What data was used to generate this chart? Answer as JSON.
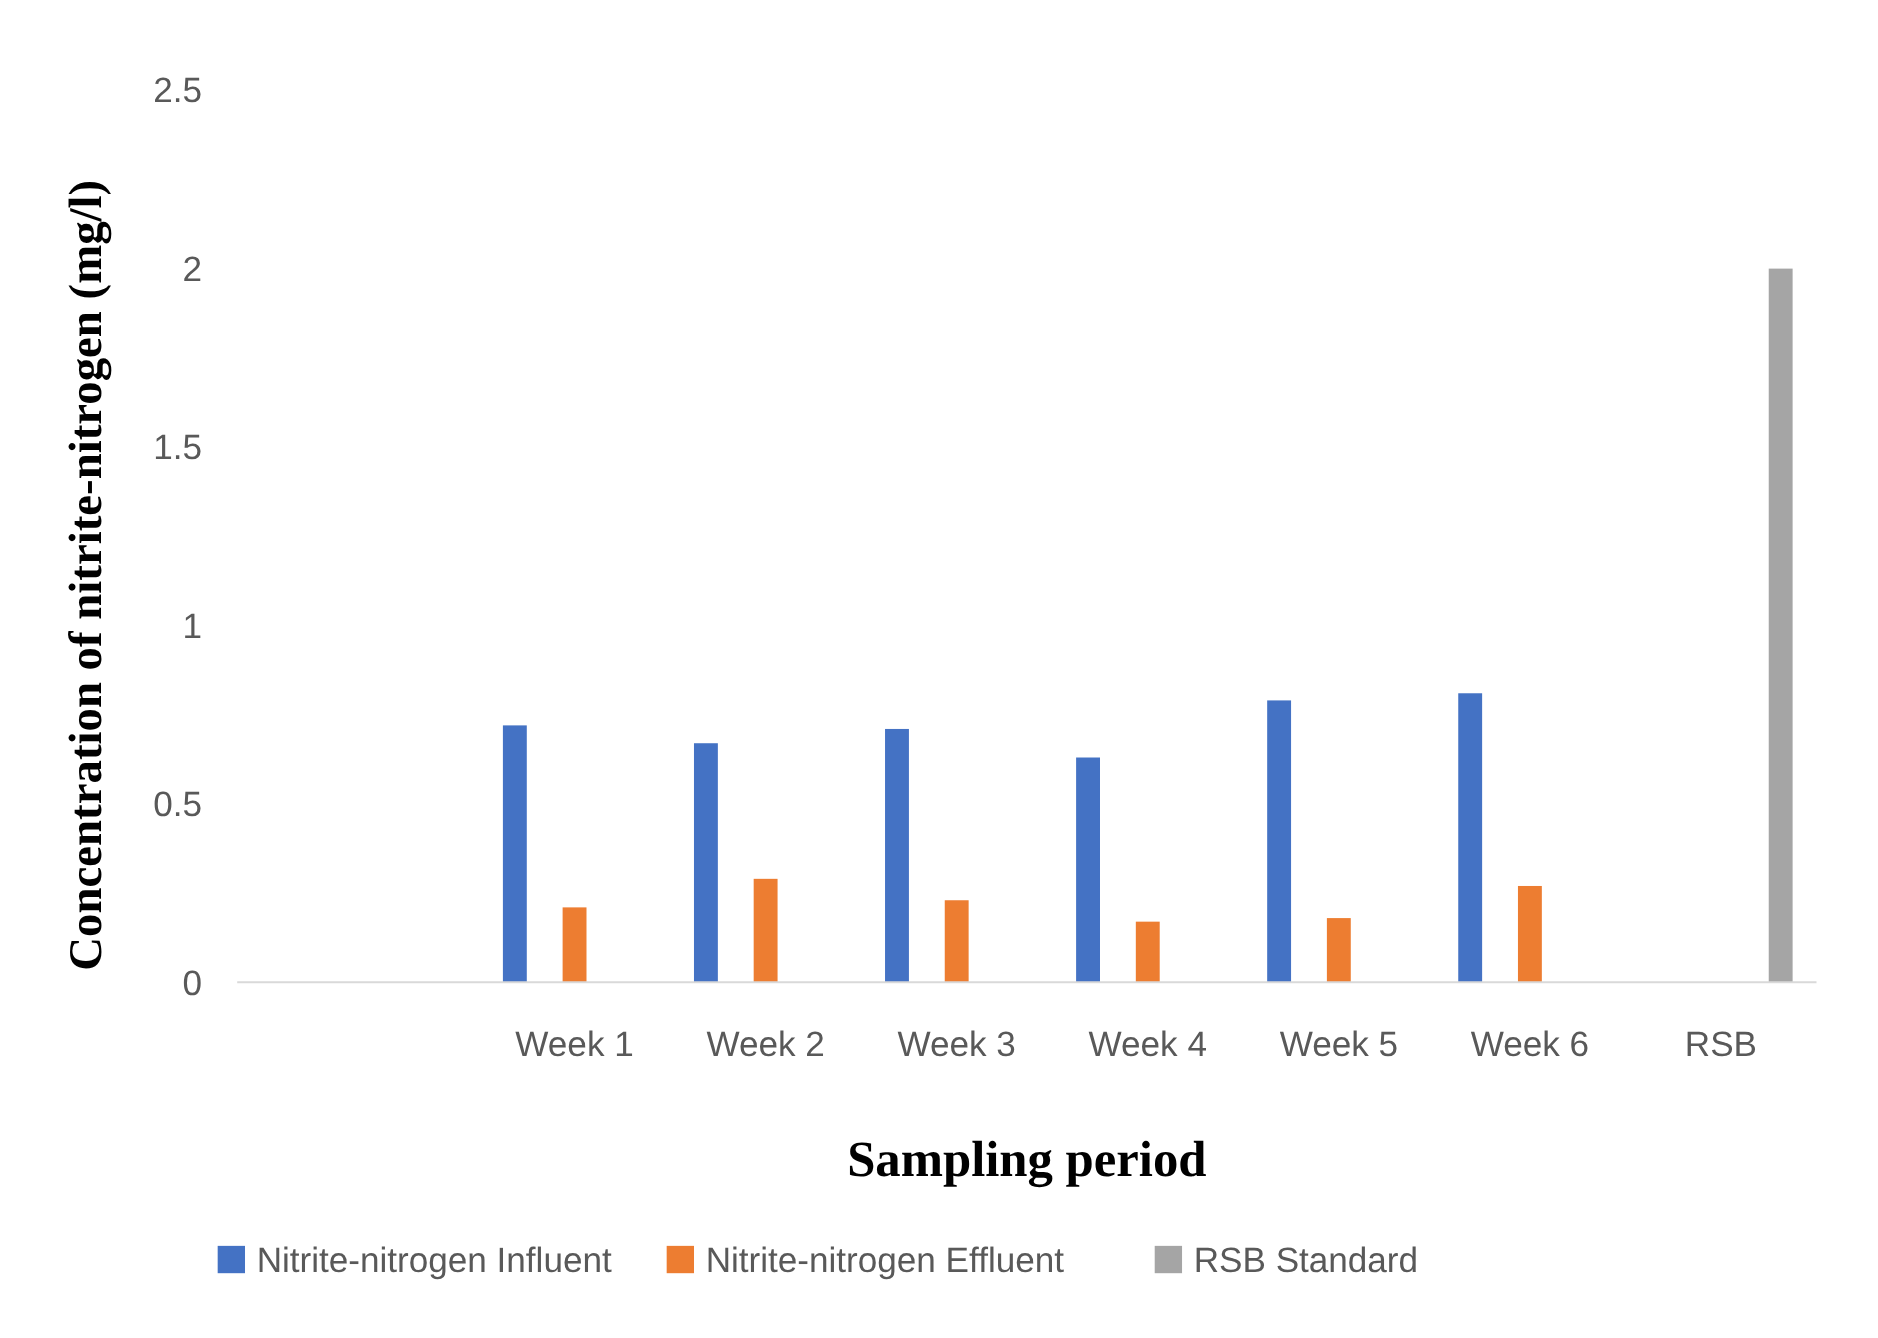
{
  "chart_data": {
    "type": "bar",
    "xlabel": "Sampling period",
    "ylabel": "Concentration of nitrite-nitrogen (mg/l)",
    "categories": [
      null,
      "Week 1",
      "Week 2",
      "Week 3",
      "Week 4",
      "Week 5",
      "Week 6",
      "RSB"
    ],
    "series": [
      {
        "name": "Nitrite-nitrogen Influent",
        "color": "#4472c4",
        "values": [
          null,
          0.72,
          0.67,
          0.71,
          0.63,
          0.79,
          0.81,
          null
        ]
      },
      {
        "name": "Nitrite-nitrogen  Effluent",
        "color": "#ed7d31",
        "values": [
          null,
          0.21,
          0.29,
          0.23,
          0.17,
          0.18,
          0.27,
          null
        ]
      },
      {
        "name": "RSB Standard",
        "color": "#a5a5a5",
        "values": [
          null,
          null,
          null,
          null,
          null,
          null,
          null,
          2
        ]
      }
    ],
    "ylim": [
      0,
      2.5
    ],
    "yticks": [
      0,
      0.5,
      1,
      1.5,
      2,
      2.5
    ],
    "grid": false,
    "legend": "bottom"
  }
}
